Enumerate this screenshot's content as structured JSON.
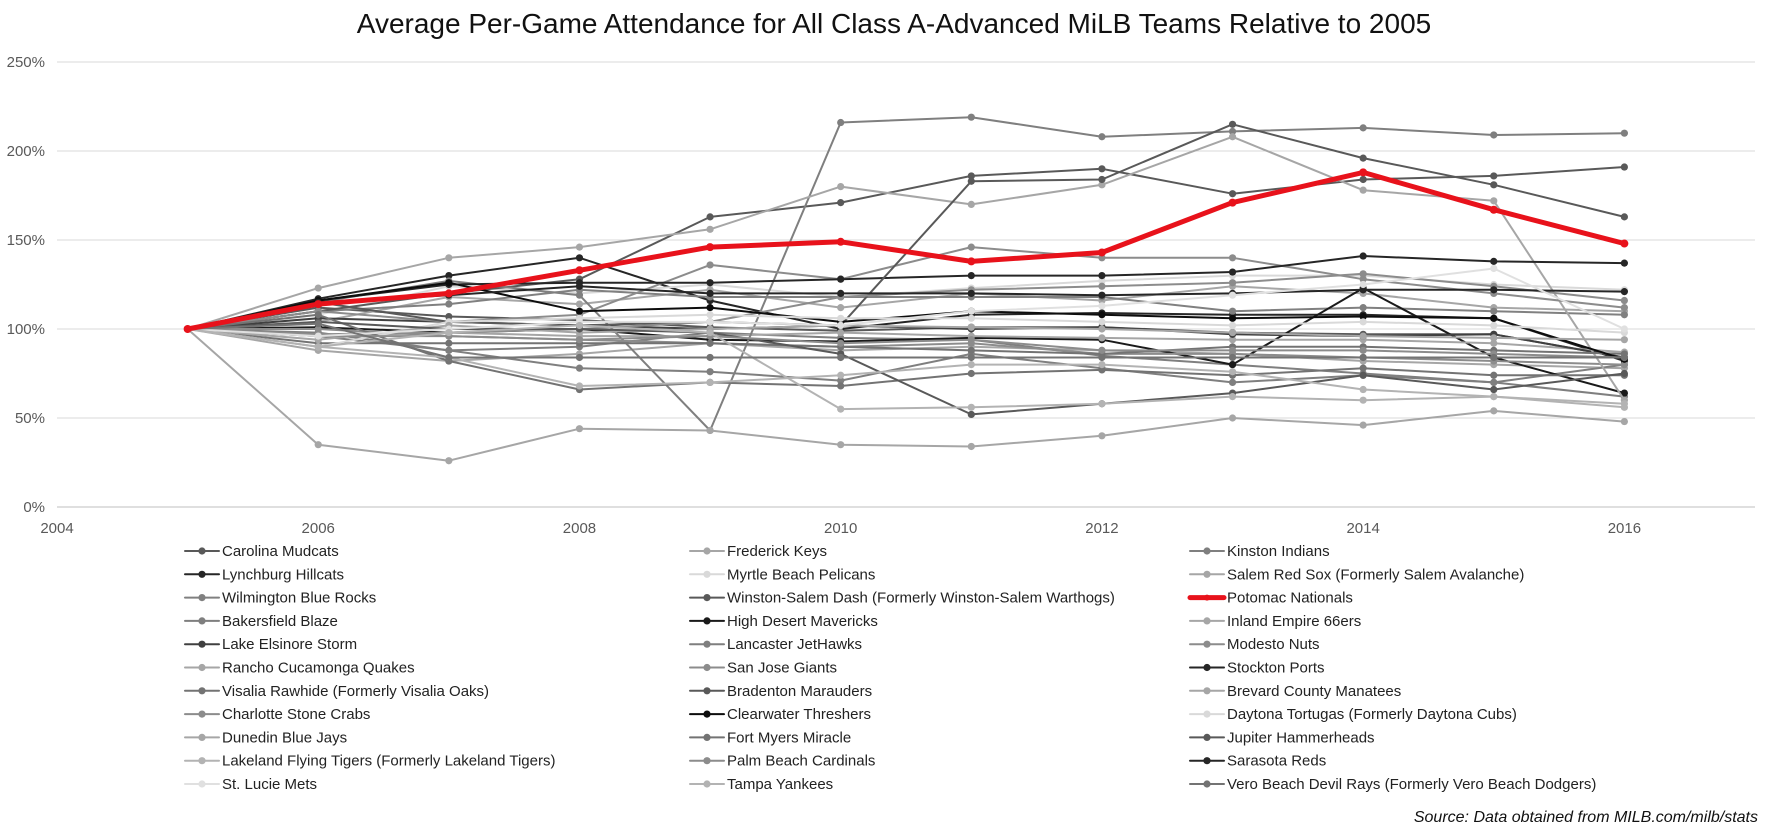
{
  "chart_data": {
    "type": "line",
    "title": "Average Per-Game Attendance for All Class A-Advanced MiLB Teams Relative to 2005",
    "xlabel": "",
    "ylabel": "",
    "xlim": [
      2004,
      2017
    ],
    "ylim": [
      0,
      250
    ],
    "x_ticks": [
      "2004",
      "2006",
      "2008",
      "2010",
      "2012",
      "2014",
      "2016"
    ],
    "y_ticks": [
      "0%",
      "50%",
      "100%",
      "150%",
      "200%",
      "250%"
    ],
    "grid": "horizontal",
    "legend_position": "bottom",
    "x": [
      2005,
      2006,
      2007,
      2008,
      2009,
      2010,
      2011,
      2012,
      2013,
      2014,
      2015,
      2016
    ],
    "series": [
      {
        "name": "Carolina Mudcats",
        "color": "#595959",
        "width": 2,
        "values": [
          100,
          112,
          107,
          105,
          101,
          99,
          101,
          101,
          98,
          97,
          97,
          84
        ]
      },
      {
        "name": "Frederick Keys",
        "color": "#a6a6a6",
        "width": 2,
        "values": [
          100,
          88,
          82,
          86,
          92,
          88,
          90,
          88,
          86,
          82,
          80,
          78
        ]
      },
      {
        "name": "Kinston Indians",
        "color": "#7f7f7f",
        "width": 2,
        "values": [
          100,
          96,
          88,
          90,
          98,
          95,
          94,
          85,
          80,
          75,
          70,
          80
        ]
      },
      {
        "name": "Lynchburg Hillcats",
        "color": "#262626",
        "width": 2,
        "values": [
          100,
          117,
          130,
          140,
          116,
          100,
          108,
          109,
          108,
          108,
          106,
          82
        ]
      },
      {
        "name": "Myrtle Beach Pelicans",
        "color": "#d9d9d9",
        "width": 2,
        "values": [
          100,
          108,
          124,
          120,
          125,
          118,
          123,
          127,
          130,
          130,
          125,
          122
        ]
      },
      {
        "name": "Salem Red Sox (Formerly Salem Avalanche)",
        "color": "#a6a6a6",
        "width": 2,
        "values": [
          100,
          104,
          118,
          114,
          122,
          112,
          120,
          116,
          124,
          120,
          112,
          110
        ]
      },
      {
        "name": "Wilmington Blue Rocks",
        "color": "#808080",
        "width": 2,
        "values": [
          100,
          110,
          114,
          122,
          118,
          118,
          118,
          118,
          110,
          112,
          110,
          108
        ]
      },
      {
        "name": "Winston-Salem Dash (Formerly Winston-Salem Warthogs)",
        "color": "#595959",
        "width": 2,
        "values": [
          100,
          110,
          120,
          128,
          163,
          171,
          186,
          190,
          176,
          184,
          186,
          191
        ]
      },
      {
        "name": "Potomac Nationals",
        "color": "#e8121b",
        "width": 5,
        "values": [
          100,
          114,
          120,
          133,
          146,
          149,
          138,
          143,
          171,
          188,
          167,
          148
        ]
      },
      {
        "name": "Bakersfield Blaze",
        "color": "#7f7f7f",
        "width": 2,
        "values": [
          100,
          98,
          88,
          78,
          76,
          71,
          86,
          78,
          70,
          74,
          70,
          62
        ]
      },
      {
        "name": "High Desert Mavericks",
        "color": "#1a1a1a",
        "width": 2,
        "values": [
          100,
          101,
          98,
          100,
          94,
          93,
          95,
          94,
          80,
          123,
          84,
          64
        ]
      },
      {
        "name": "Inland Empire 66ers",
        "color": "#a6a6a6",
        "width": 2,
        "values": [
          100,
          96,
          98,
          96,
          96,
          98,
          96,
          95,
          94,
          94,
          92,
          87
        ]
      },
      {
        "name": "Lake Elsinore Storm",
        "color": "#404040",
        "width": 2,
        "values": [
          100,
          106,
          104,
          102,
          100,
          102,
          100,
          101,
          97,
          96,
          97,
          84
        ]
      },
      {
        "name": "Lancaster JetHawks",
        "color": "#7f7f7f",
        "width": 2,
        "values": [
          100,
          115,
          127,
          119,
          43,
          216,
          219,
          208,
          211,
          213,
          209,
          210
        ]
      },
      {
        "name": "Modesto Nuts",
        "color": "#8c8c8c",
        "width": 2,
        "values": [
          100,
          100,
          96,
          94,
          92,
          90,
          92,
          86,
          86,
          84,
          82,
          80
        ]
      },
      {
        "name": "Rancho Cucamonga Quakes",
        "color": "#a6a6a6",
        "width": 2,
        "values": [
          100,
          123,
          140,
          146,
          156,
          180,
          170,
          181,
          208,
          178,
          172,
          60
        ]
      },
      {
        "name": "San Jose Giants",
        "color": "#8c8c8c",
        "width": 2,
        "values": [
          100,
          110,
          104,
          108,
          136,
          128,
          146,
          140,
          140,
          128,
          120,
          112
        ]
      },
      {
        "name": "Stockton Ports",
        "color": "#262626",
        "width": 2,
        "values": [
          100,
          116,
          125,
          126,
          126,
          128,
          130,
          130,
          132,
          141,
          138,
          137
        ]
      },
      {
        "name": "Visalia Rawhide (Formerly Visalia Oaks)",
        "color": "#737373",
        "width": 2,
        "values": [
          100,
          92,
          92,
          92,
          92,
          90,
          88,
          86,
          90,
          90,
          88,
          86
        ]
      },
      {
        "name": "Bradenton Marauders",
        "color": "#595959",
        "width": 2,
        "values": [
          100,
          115,
          104,
          102,
          104,
          102,
          183,
          184,
          215,
          196,
          181,
          163
        ]
      },
      {
        "name": "Brevard County Manatees",
        "color": "#a6a6a6",
        "width": 2,
        "values": [
          100,
          35,
          26,
          44,
          43,
          35,
          34,
          40,
          50,
          46,
          54,
          48
        ]
      },
      {
        "name": "Charlotte Stone Crabs",
        "color": "#8c8c8c",
        "width": 2,
        "values": [
          100,
          97,
          98,
          100,
          104,
          118,
          122,
          124,
          126,
          131,
          124,
          116
        ]
      },
      {
        "name": "Clearwater Threshers",
        "color": "#0d0d0d",
        "width": 2,
        "values": [
          100,
          116,
          126,
          110,
          112,
          104,
          110,
          108,
          106,
          107,
          106,
          83
        ]
      },
      {
        "name": "Daytona Tortugas (Formerly Daytona Cubs)",
        "color": "#d9d9d9",
        "width": 2,
        "values": [
          100,
          90,
          104,
          106,
          108,
          106,
          106,
          104,
          102,
          104,
          102,
          98
        ]
      },
      {
        "name": "Dunedin Blue Jays",
        "color": "#a6a6a6",
        "width": 2,
        "values": [
          100,
          94,
          102,
          98,
          100,
          102,
          101,
          100,
          98,
          96,
          95,
          94
        ]
      },
      {
        "name": "Fort Myers Miracle",
        "color": "#737373",
        "width": 2,
        "values": [
          100,
          108,
          82,
          66,
          70,
          68,
          75,
          77,
          74,
          78,
          74,
          74
        ]
      },
      {
        "name": "Jupiter Hammerheads",
        "color": "#595959",
        "width": 2,
        "values": [
          100,
          104,
          100,
          100,
          98,
          86,
          52,
          58,
          64,
          74,
          66,
          75
        ]
      },
      {
        "name": "Lakeland Flying Tigers (Formerly Lakeland Tigers)",
        "color": "#b3b3b3",
        "width": 2,
        "values": [
          100,
          90,
          84,
          68,
          70,
          74,
          80,
          80,
          76,
          66,
          62,
          58
        ]
      },
      {
        "name": "Palm Beach Cardinals",
        "color": "#8c8c8c",
        "width": 2,
        "values": [
          100,
          96,
          96,
          94,
          96,
          92,
          94,
          88,
          88,
          88,
          86,
          84
        ]
      },
      {
        "name": "Sarasota Reds",
        "color": "#262626",
        "width": 2,
        "values": [
          100,
          115,
          119,
          124,
          120,
          120,
          120,
          119,
          120,
          122,
          122,
          121
        ]
      },
      {
        "name": "St. Lucie Mets",
        "color": "#e0e0e0",
        "width": 2,
        "values": [
          100,
          96,
          100,
          104,
          104,
          102,
          110,
          113,
          119,
          125,
          134,
          100
        ]
      },
      {
        "name": "Tampa Yankees",
        "color": "#b3b3b3",
        "width": 2,
        "values": [
          100,
          90,
          98,
          102,
          98,
          55,
          56,
          58,
          62,
          60,
          62,
          56
        ]
      },
      {
        "name": "Vero Beach Devil Rays (Formerly Vero Beach Dodgers)",
        "color": "#737373",
        "width": 2,
        "values": [
          100,
          103,
          84,
          84,
          84,
          84,
          84,
          84,
          84,
          84,
          84,
          84
        ]
      }
    ]
  },
  "source_note": "Source: Data obtained from MILB.com/milb/stats"
}
